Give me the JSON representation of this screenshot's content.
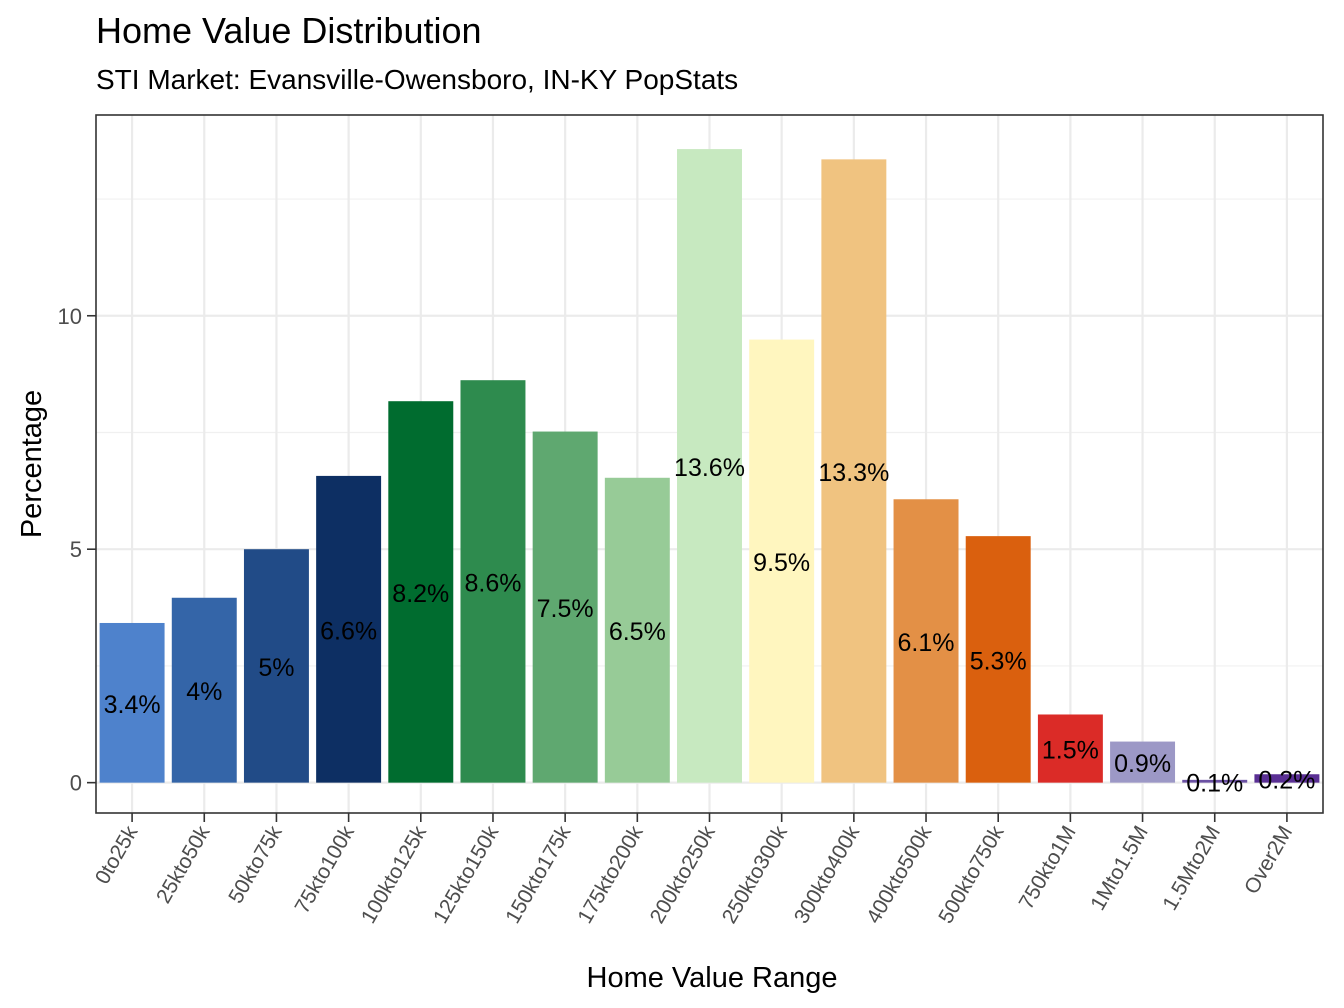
{
  "title": "Home Value Distribution",
  "subtitle": "STI Market: Evansville-Owensboro, IN-KY PopStats",
  "chart_data": {
    "type": "bar",
    "xlabel": "Home Value Range",
    "ylabel": "Percentage",
    "ylim": [
      -0.65,
      14.3
    ],
    "yticks": [
      0,
      5,
      10
    ],
    "grid": true,
    "legend": "none",
    "categories": [
      "0to25k",
      "25kto50k",
      "50kto75k",
      "75kto100k",
      "100kto125k",
      "125kto150k",
      "150kto175k",
      "175kto200k",
      "200kto250k",
      "250kto300k",
      "300kto400k",
      "400kto500k",
      "500kto750k",
      "750kto1M",
      "1Mto1.5M",
      "1.5Mto2M",
      "Over2M"
    ],
    "values": [
      3.42,
      3.96,
      5.0,
      6.57,
      8.17,
      8.62,
      7.52,
      6.53,
      13.57,
      9.49,
      13.35,
      6.07,
      5.28,
      1.46,
      0.88,
      0.06,
      0.18
    ],
    "labels": [
      "3.4%",
      "4%",
      "5%",
      "6.6%",
      "8.2%",
      "8.6%",
      "7.5%",
      "6.5%",
      "13.6%",
      "9.5%",
      "13.3%",
      "6.1%",
      "5.3%",
      "1.5%",
      "0.9%",
      "0.1%",
      "0.2%"
    ],
    "colors": [
      "#4E82CC",
      "#3465A8",
      "#214B87",
      "#0D2F63",
      "#006C2F",
      "#2E8B4E",
      "#5FA870",
      "#97CB97",
      "#C7E9C0",
      "#FFF6BF",
      "#F0C380",
      "#E39046",
      "#DA600E",
      "#DB2B27",
      "#9C98C6",
      "#6B51A3",
      "#5A2F94"
    ]
  }
}
